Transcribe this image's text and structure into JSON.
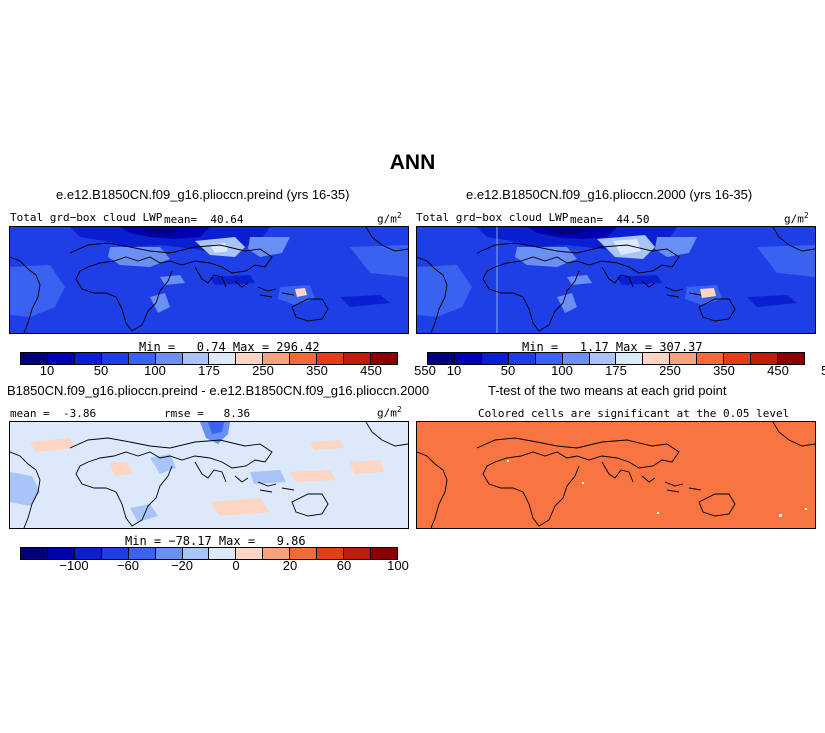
{
  "title": "ANN",
  "panels": {
    "p1": {
      "title": "e.e12.B1850CN.f09_g16.plioccn.preind (yrs 16-35)",
      "variable": "Total grd−box cloud LWP",
      "mean": "mean=  40.64",
      "units_base": "g/m",
      "units_exp": "2",
      "min_max": "Min =   0.74 Max = 296.42"
    },
    "p2": {
      "title": "e.e12.B1850CN.f09_g16.plioccn.2000 (yrs 16-35)",
      "variable": "Total grd−box cloud LWP",
      "mean": "mean=  44.50",
      "units_base": "g/m",
      "units_exp": "2",
      "min_max": "Min =   1.17 Max = 307.37"
    },
    "p3": {
      "title": "B1850CN.f09_g16.plioccn.preind - e.e12.B1850CN.f09_g16.plioccn.2000",
      "mean": "mean =  -3.86",
      "rmse": "rmse =   8.36",
      "units_base": "g/m",
      "units_exp": "2",
      "min_max": "Min = −78.17 Max =   9.86"
    },
    "p4": {
      "title": "T-test of the two means at each grid point",
      "subtitle": "Colored cells are significant at the 0.05 level"
    }
  },
  "colorbars": {
    "abs": {
      "colors": [
        "#00007f",
        "#0000b0",
        "#0a1fd0",
        "#1e3ee6",
        "#3a62f0",
        "#6a8ff5",
        "#a8c4f8",
        "#dce9fb",
        "#fcd6c2",
        "#f9a27e",
        "#f36a3a",
        "#e43e18",
        "#bd1b0c",
        "#8a0000"
      ],
      "labels": [
        "10",
        "50",
        "100",
        "175",
        "250",
        "350",
        "450",
        "550"
      ]
    },
    "diff": {
      "colors": [
        "#00007f",
        "#0000b0",
        "#0a1fd0",
        "#1e3ee6",
        "#3a62f0",
        "#6a8ff5",
        "#a8c4f8",
        "#dce9fb",
        "#fcd6c2",
        "#f9a27e",
        "#f36a3a",
        "#e43e18",
        "#bd1b0c",
        "#8a0000"
      ],
      "labels": [
        "−100",
        "−60",
        "−20",
        "0",
        "20",
        "60",
        "100"
      ]
    }
  },
  "fill_colors": {
    "abs_background": "#1e3ee6",
    "diff_background": "#dce9fb",
    "ttest_background": "#f87440"
  }
}
